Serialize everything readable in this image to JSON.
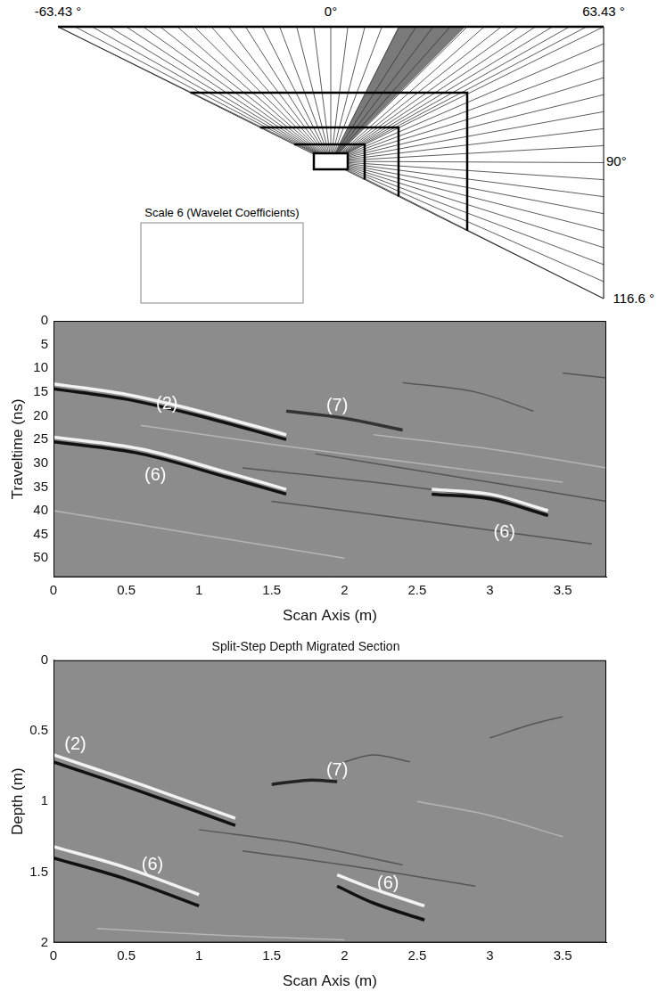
{
  "diagram": {
    "angle_labels": [
      "-63.43 °",
      "0°",
      "63.43 °",
      "90°",
      "116.6 °"
    ],
    "box_label": "Scale 6 (Wavelet Coefficients)"
  },
  "chart_data": [
    {
      "type": "line",
      "xlabel": "Scan Axis (m)",
      "ylabel": "Traveltime (ns)",
      "xlim": [
        0,
        3.8
      ],
      "xticks": [
        0,
        0.5,
        1,
        1.5,
        2,
        2.5,
        3,
        3.5
      ],
      "ylim": [
        0,
        54
      ],
      "yticks": [
        0,
        5,
        10,
        15,
        20,
        25,
        30,
        35,
        40,
        45,
        50
      ],
      "y_reversed": true,
      "grid": false,
      "color": "#8c8c8c",
      "series": [
        {
          "color": "#f2f2f2",
          "x": [
            0,
            0.5,
            1,
            1.6
          ],
          "values": [
            13.3,
            15.5,
            19,
            24
          ]
        },
        {
          "color": "#111111",
          "x": [
            0,
            0.5,
            1,
            1.6
          ],
          "values": [
            14.3,
            16.5,
            20,
            25
          ]
        },
        {
          "color": "#f2f2f2",
          "x": [
            0,
            0.6,
            1.2,
            1.6
          ],
          "values": [
            24.5,
            27,
            32,
            35.5
          ]
        },
        {
          "color": "#111111",
          "x": [
            0,
            0.6,
            1.2,
            1.6
          ],
          "values": [
            25.5,
            28,
            33,
            36.5
          ]
        },
        {
          "color": "#f2f2f2",
          "x": [
            2.6,
            3.0,
            3.4
          ],
          "values": [
            35.5,
            36.5,
            40
          ]
        },
        {
          "color": "#111111",
          "x": [
            2.6,
            3.0,
            3.4
          ],
          "values": [
            36.5,
            37.5,
            41
          ]
        },
        {
          "color": "#333333",
          "x": [
            1.6,
            2.0,
            2.4
          ],
          "values": [
            19,
            20.5,
            23
          ]
        },
        {
          "color": "#b5b5b5",
          "x": [
            0.6,
            1.5,
            2.5,
            3.5
          ],
          "values": [
            22,
            26,
            30,
            34
          ]
        },
        {
          "color": "#555555",
          "x": [
            1.3,
            2.2,
            3.2
          ],
          "values": [
            31,
            34,
            38
          ]
        },
        {
          "color": "#555555",
          "x": [
            1.5,
            2.5,
            3.7
          ],
          "values": [
            38,
            42,
            47
          ]
        },
        {
          "color": "#b5b5b5",
          "x": [
            0,
            1,
            2
          ],
          "values": [
            40,
            45,
            50
          ]
        },
        {
          "color": "#555555",
          "x": [
            2.4,
            2.9,
            3.3
          ],
          "values": [
            13,
            15,
            19
          ]
        },
        {
          "color": "#b5b5b5",
          "x": [
            2.2,
            3.0,
            3.8
          ],
          "values": [
            24,
            27,
            31
          ]
        },
        {
          "color": "#555555",
          "x": [
            3.5,
            3.8
          ],
          "values": [
            11,
            12
          ]
        },
        {
          "color": "#555555",
          "x": [
            1.8,
            2.8,
            3.8
          ],
          "values": [
            28,
            33,
            38
          ]
        }
      ],
      "annotations": [
        {
          "text": "(2)",
          "x": 0.78,
          "y": 17.5
        },
        {
          "text": "(7)",
          "x": 1.95,
          "y": 18
        },
        {
          "text": "(6)",
          "x": 0.7,
          "y": 32.5
        },
        {
          "text": "(6)",
          "x": 3.1,
          "y": 44.5
        }
      ]
    },
    {
      "type": "line",
      "title": "Split-Step Depth Migrated Section",
      "xlabel": "Scan Axis (m)",
      "ylabel": "Depth (m)",
      "xlim": [
        0,
        3.8
      ],
      "xticks": [
        0,
        0.5,
        1,
        1.5,
        2,
        2.5,
        3,
        3.5
      ],
      "ylim": [
        0,
        2
      ],
      "yticks": [
        0,
        0.5,
        1,
        1.5,
        2
      ],
      "y_reversed": true,
      "grid": false,
      "color": "#8c8c8c",
      "series": [
        {
          "color": "#f2f2f2",
          "x": [
            0,
            0.6,
            1.25
          ],
          "values": [
            0.67,
            0.88,
            1.12
          ]
        },
        {
          "color": "#111111",
          "x": [
            0,
            0.6,
            1.25
          ],
          "values": [
            0.72,
            0.93,
            1.17
          ]
        },
        {
          "color": "#f2f2f2",
          "x": [
            0,
            0.5,
            1.0
          ],
          "values": [
            1.32,
            1.47,
            1.66
          ]
        },
        {
          "color": "#111111",
          "x": [
            0,
            0.5,
            1.0
          ],
          "values": [
            1.4,
            1.55,
            1.74
          ]
        },
        {
          "color": "#f2f2f2",
          "x": [
            1.95,
            2.2,
            2.55
          ],
          "values": [
            1.52,
            1.62,
            1.74
          ]
        },
        {
          "color": "#111111",
          "x": [
            1.95,
            2.2,
            2.55
          ],
          "values": [
            1.6,
            1.72,
            1.84
          ]
        },
        {
          "color": "#222222",
          "x": [
            1.5,
            1.75,
            1.95
          ],
          "values": [
            0.88,
            0.85,
            0.86
          ]
        },
        {
          "color": "#555555",
          "x": [
            2.0,
            2.2,
            2.45
          ],
          "values": [
            0.72,
            0.67,
            0.72
          ]
        },
        {
          "color": "#555555",
          "x": [
            1.3,
            2.0,
            2.9
          ],
          "values": [
            1.35,
            1.45,
            1.6
          ]
        },
        {
          "color": "#b5b5b5",
          "x": [
            2.5,
            3.0,
            3.5
          ],
          "values": [
            1.0,
            1.1,
            1.25
          ]
        },
        {
          "color": "#555555",
          "x": [
            3.0,
            3.3,
            3.5
          ],
          "values": [
            0.55,
            0.45,
            0.4
          ]
        },
        {
          "color": "#b5b5b5",
          "x": [
            0.3,
            1.2,
            2.0
          ],
          "values": [
            1.9,
            1.95,
            1.98
          ]
        },
        {
          "color": "#555555",
          "x": [
            1.0,
            1.7,
            2.4
          ],
          "values": [
            1.2,
            1.3,
            1.45
          ]
        }
      ],
      "annotations": [
        {
          "text": "(2)",
          "x": 0.15,
          "y": 0.6
        },
        {
          "text": "(7)",
          "x": 1.95,
          "y": 0.78
        },
        {
          "text": "(6)",
          "x": 0.68,
          "y": 1.45
        },
        {
          "text": "(6)",
          "x": 2.3,
          "y": 1.58
        }
      ]
    }
  ]
}
